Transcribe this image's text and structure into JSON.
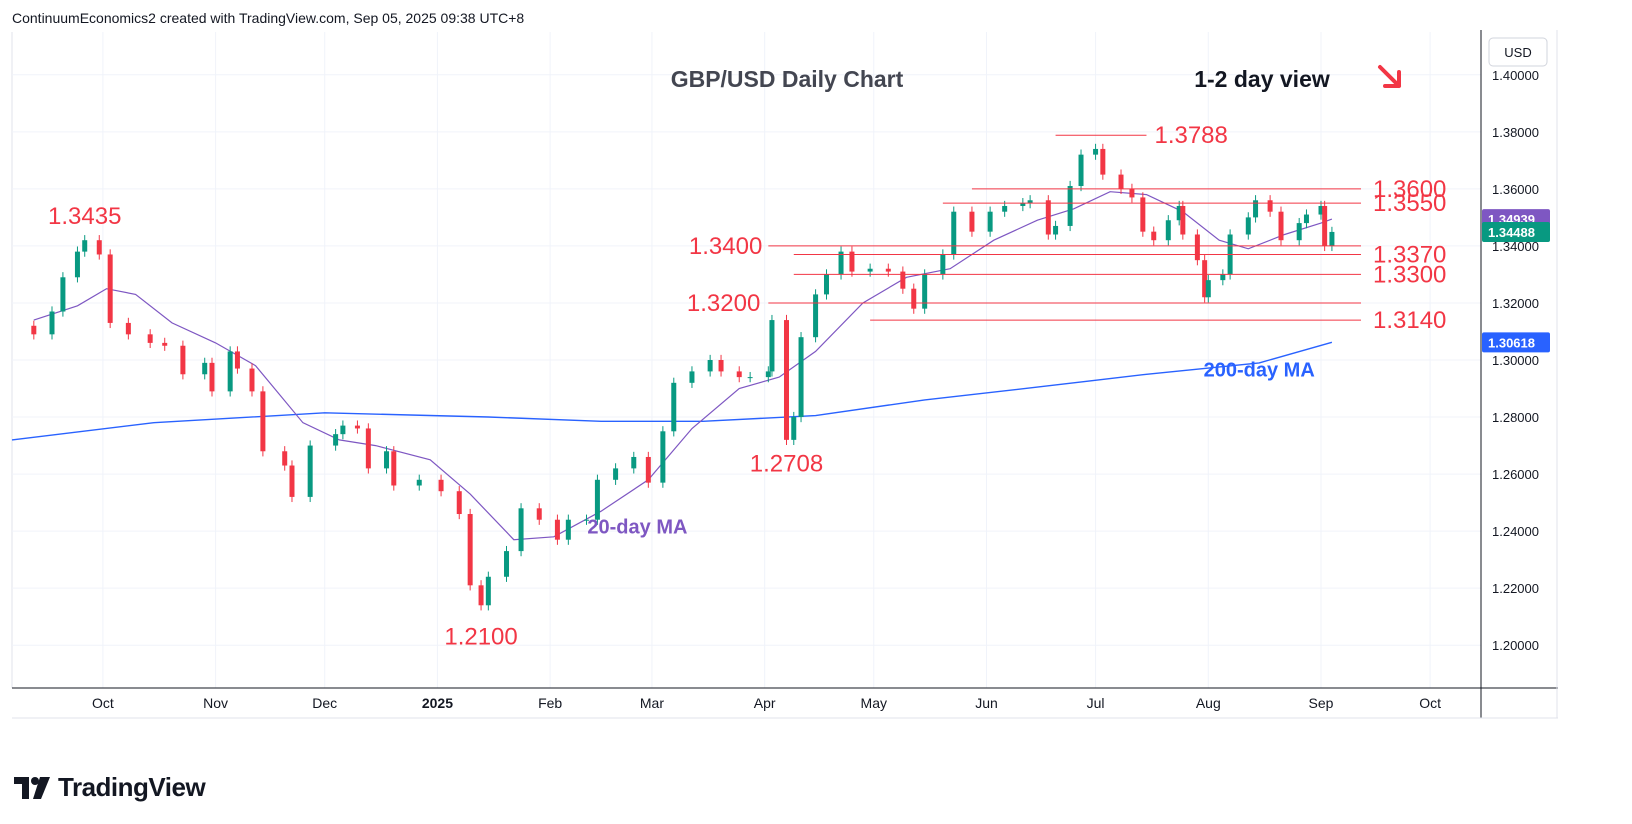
{
  "header": {
    "credit": "ContinuumEconomics2 created with TradingView.com, Sep 05, 2025 09:38 UTC+8"
  },
  "branding": {
    "logo_text": "TradingView"
  },
  "colors": {
    "up": "#089981",
    "down": "#f23645",
    "level": "#f23645",
    "ma20": "#7e57c2",
    "ma200": "#2962ff",
    "grid": "#f0f3fa",
    "axis_text": "#131722"
  },
  "chart_data": {
    "type": "candlestick",
    "title": "GBP/USD Daily Chart",
    "view_label": "1-2 day view",
    "view_arrow": "down-right-arrow",
    "currency_label": "USD",
    "ylim": [
      1.185,
      1.415
    ],
    "y_ticks": [
      "1.40000",
      "1.38000",
      "1.36000",
      "1.34000",
      "1.32000",
      "1.30000",
      "1.28000",
      "1.26000",
      "1.24000",
      "1.22000",
      "1.20000"
    ],
    "x_ticks": [
      {
        "label": "Oct",
        "date": "2024-10-01"
      },
      {
        "label": "Nov",
        "date": "2024-11-01"
      },
      {
        "label": "Dec",
        "date": "2024-12-01"
      },
      {
        "label": "2025",
        "date": "2025-01-01",
        "bold": true
      },
      {
        "label": "Feb",
        "date": "2025-02-01"
      },
      {
        "label": "Mar",
        "date": "2025-03-01"
      },
      {
        "label": "Apr",
        "date": "2025-04-01"
      },
      {
        "label": "May",
        "date": "2025-05-01"
      },
      {
        "label": "Jun",
        "date": "2025-06-01"
      },
      {
        "label": "Jul",
        "date": "2025-07-01"
      },
      {
        "label": "Aug",
        "date": "2025-08-01"
      },
      {
        "label": "Sep",
        "date": "2025-09-01"
      },
      {
        "label": "Oct",
        "date": "2025-10-01"
      }
    ],
    "date_range": [
      "2024-09-06",
      "2025-10-15"
    ],
    "last_price": {
      "label": "1.34488",
      "value": 1.34488
    },
    "ma20_last": {
      "label": "1.34939",
      "value": 1.34939
    },
    "ma200_last": {
      "label": "1.30618",
      "value": 1.30618
    },
    "closes": [
      [
        "2024-09-06",
        1.312
      ],
      [
        "2024-09-12",
        1.309
      ],
      [
        "2024-09-17",
        1.317
      ],
      [
        "2024-09-20",
        1.329
      ],
      [
        "2024-09-24",
        1.338
      ],
      [
        "2024-09-26",
        1.342
      ],
      [
        "2024-09-30",
        1.337
      ],
      [
        "2024-10-03",
        1.313
      ],
      [
        "2024-10-08",
        1.309
      ],
      [
        "2024-10-14",
        1.306
      ],
      [
        "2024-10-18",
        1.305
      ],
      [
        "2024-10-23",
        1.295
      ],
      [
        "2024-10-29",
        1.299
      ],
      [
        "2024-10-31",
        1.289
      ],
      [
        "2024-11-05",
        1.303
      ],
      [
        "2024-11-07",
        1.297
      ],
      [
        "2024-11-11",
        1.289
      ],
      [
        "2024-11-14",
        1.268
      ],
      [
        "2024-11-20",
        1.263
      ],
      [
        "2024-11-22",
        1.252
      ],
      [
        "2024-11-27",
        1.27
      ],
      [
        "2024-12-04",
        1.274
      ],
      [
        "2024-12-06",
        1.277
      ],
      [
        "2024-12-10",
        1.276
      ],
      [
        "2024-12-13",
        1.262
      ],
      [
        "2024-12-18",
        1.268
      ],
      [
        "2024-12-20",
        1.256
      ],
      [
        "2024-12-27",
        1.258
      ],
      [
        "2025-01-02",
        1.254
      ],
      [
        "2025-01-07",
        1.246
      ],
      [
        "2025-01-10",
        1.221
      ],
      [
        "2025-01-13",
        1.214
      ],
      [
        "2025-01-15",
        1.224
      ],
      [
        "2025-01-20",
        1.233
      ],
      [
        "2025-01-24",
        1.248
      ],
      [
        "2025-01-29",
        1.244
      ],
      [
        "2025-02-03",
        1.237
      ],
      [
        "2025-02-06",
        1.244
      ],
      [
        "2025-02-11",
        1.244
      ],
      [
        "2025-02-14",
        1.258
      ],
      [
        "2025-02-19",
        1.262
      ],
      [
        "2025-02-24",
        1.266
      ],
      [
        "2025-02-28",
        1.257
      ],
      [
        "2025-03-04",
        1.275
      ],
      [
        "2025-03-07",
        1.292
      ],
      [
        "2025-03-12",
        1.296
      ],
      [
        "2025-03-17",
        1.3
      ],
      [
        "2025-03-20",
        1.296
      ],
      [
        "2025-03-25",
        1.294
      ],
      [
        "2025-03-28",
        1.294
      ],
      [
        "2025-04-02",
        1.296
      ],
      [
        "2025-04-03",
        1.314
      ],
      [
        "2025-04-07",
        1.272
      ],
      [
        "2025-04-09",
        1.28
      ],
      [
        "2025-04-11",
        1.308
      ],
      [
        "2025-04-15",
        1.323
      ],
      [
        "2025-04-18",
        1.33
      ],
      [
        "2025-04-22",
        1.338
      ],
      [
        "2025-04-25",
        1.331
      ],
      [
        "2025-04-30",
        1.332
      ],
      [
        "2025-05-05",
        1.331
      ],
      [
        "2025-05-09",
        1.325
      ],
      [
        "2025-05-12",
        1.318
      ],
      [
        "2025-05-15",
        1.33
      ],
      [
        "2025-05-20",
        1.337
      ],
      [
        "2025-05-23",
        1.352
      ],
      [
        "2025-05-28",
        1.345
      ],
      [
        "2025-06-02",
        1.352
      ],
      [
        "2025-06-06",
        1.354
      ],
      [
        "2025-06-11",
        1.355
      ],
      [
        "2025-06-13",
        1.356
      ],
      [
        "2025-06-18",
        1.344
      ],
      [
        "2025-06-20",
        1.347
      ],
      [
        "2025-06-24",
        1.361
      ],
      [
        "2025-06-27",
        1.372
      ],
      [
        "2025-07-01",
        1.374
      ],
      [
        "2025-07-03",
        1.365
      ],
      [
        "2025-07-08",
        1.36
      ],
      [
        "2025-07-11",
        1.357
      ],
      [
        "2025-07-14",
        1.345
      ],
      [
        "2025-07-17",
        1.342
      ],
      [
        "2025-07-21",
        1.349
      ],
      [
        "2025-07-24",
        1.354
      ],
      [
        "2025-07-25",
        1.344
      ],
      [
        "2025-07-29",
        1.335
      ],
      [
        "2025-07-31",
        1.322
      ],
      [
        "2025-08-01",
        1.328
      ],
      [
        "2025-08-05",
        1.33
      ],
      [
        "2025-08-07",
        1.344
      ],
      [
        "2025-08-12",
        1.35
      ],
      [
        "2025-08-14",
        1.356
      ],
      [
        "2025-08-18",
        1.352
      ],
      [
        "2025-08-21",
        1.342
      ],
      [
        "2025-08-26",
        1.348
      ],
      [
        "2025-08-28",
        1.351
      ],
      [
        "2025-09-01",
        1.354
      ],
      [
        "2025-09-02",
        1.34
      ],
      [
        "2025-09-04",
        1.3449
      ]
    ],
    "ma20_points": [
      [
        "2024-09-12",
        1.314
      ],
      [
        "2024-09-24",
        1.319
      ],
      [
        "2024-10-02",
        1.325
      ],
      [
        "2024-10-10",
        1.323
      ],
      [
        "2024-10-20",
        1.313
      ],
      [
        "2024-11-01",
        1.306
      ],
      [
        "2024-11-12",
        1.298
      ],
      [
        "2024-11-25",
        1.278
      ],
      [
        "2024-12-05",
        1.272
      ],
      [
        "2024-12-15",
        1.27
      ],
      [
        "2024-12-30",
        1.265
      ],
      [
        "2025-01-10",
        1.253
      ],
      [
        "2025-01-22",
        1.237
      ],
      [
        "2025-02-02",
        1.238
      ],
      [
        "2025-02-15",
        1.247
      ],
      [
        "2025-02-28",
        1.258
      ],
      [
        "2025-03-12",
        1.276
      ],
      [
        "2025-03-25",
        1.29
      ],
      [
        "2025-04-05",
        1.294
      ],
      [
        "2025-04-15",
        1.303
      ],
      [
        "2025-04-28",
        1.32
      ],
      [
        "2025-05-10",
        1.329
      ],
      [
        "2025-05-22",
        1.332
      ],
      [
        "2025-06-03",
        1.342
      ],
      [
        "2025-06-15",
        1.349
      ],
      [
        "2025-06-25",
        1.353
      ],
      [
        "2025-07-05",
        1.359
      ],
      [
        "2025-07-15",
        1.358
      ],
      [
        "2025-07-25",
        1.352
      ],
      [
        "2025-08-04",
        1.342
      ],
      [
        "2025-08-12",
        1.339
      ],
      [
        "2025-08-22",
        1.344
      ],
      [
        "2025-09-01",
        1.348
      ],
      [
        "2025-09-04",
        1.3494
      ]
    ],
    "ma200_points": [
      [
        "2024-09-06",
        1.272
      ],
      [
        "2024-10-15",
        1.278
      ],
      [
        "2024-12-01",
        1.2815
      ],
      [
        "2025-01-15",
        1.28
      ],
      [
        "2025-02-15",
        1.2785
      ],
      [
        "2025-03-15",
        1.2785
      ],
      [
        "2025-04-15",
        1.2805
      ],
      [
        "2025-05-15",
        1.286
      ],
      [
        "2025-06-15",
        1.2905
      ],
      [
        "2025-07-15",
        1.295
      ],
      [
        "2025-08-15",
        1.299
      ],
      [
        "2025-09-04",
        1.3062
      ]
    ],
    "levels": [
      {
        "label": "1.3788",
        "value": 1.3788,
        "from": "2025-06-20",
        "to": "2025-07-15"
      },
      {
        "label": "1.3600",
        "value": 1.36,
        "from": "2025-05-28",
        "to": "2025-09-12"
      },
      {
        "label": "1.3550",
        "value": 1.355,
        "from": "2025-05-20",
        "to": "2025-09-12"
      },
      {
        "label": "1.3400",
        "value": 1.34,
        "from": "2025-04-02",
        "to": "2025-09-12"
      },
      {
        "label": "1.3370",
        "value": 1.337,
        "from": "2025-04-09",
        "to": "2025-09-12"
      },
      {
        "label": "1.3300",
        "value": 1.33,
        "from": "2025-04-09",
        "to": "2025-09-12"
      },
      {
        "label": "1.3200",
        "value": 1.32,
        "from": "2025-04-02",
        "to": "2025-09-12"
      },
      {
        "label": "1.3140",
        "value": 1.314,
        "from": "2025-04-30",
        "to": "2025-09-12"
      }
    ],
    "annotations": [
      {
        "text": "1.3435",
        "date": "2024-09-26",
        "value": 1.3435,
        "color": "level",
        "pos": "above"
      },
      {
        "text": "1.2100",
        "date": "2025-01-13",
        "value": 1.21,
        "color": "level",
        "pos": "below"
      },
      {
        "text": "1.2708",
        "date": "2025-04-07",
        "value": 1.2708,
        "color": "level",
        "pos": "below"
      },
      {
        "text": "20-day MA",
        "date": "2025-02-25",
        "value": 1.242,
        "color": "ma20",
        "pos": "at"
      },
      {
        "text": "200-day MA",
        "date": "2025-08-15",
        "value": 1.297,
        "color": "ma200",
        "pos": "at"
      }
    ]
  }
}
